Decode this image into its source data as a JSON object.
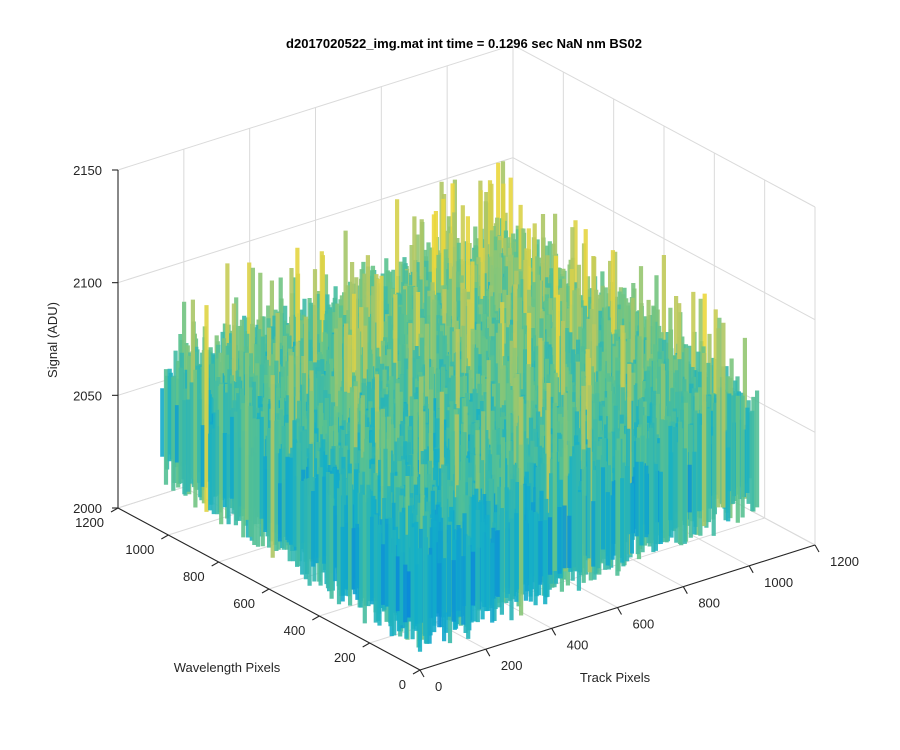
{
  "chart_data": {
    "type": "surface",
    "title": "d2017020522_img.mat int time = 0.1296 sec  NaN nm BS02",
    "xlabel": "Track Pixels",
    "ylabel": "Wavelength Pixels",
    "zlabel": "Signal (ADU)",
    "xlim": [
      0,
      1200
    ],
    "ylim": [
      0,
      1200
    ],
    "zlim": [
      2000,
      2150
    ],
    "x_ticks": [
      0,
      200,
      400,
      600,
      800,
      1000,
      1200
    ],
    "y_ticks": [
      0,
      200,
      400,
      600,
      800,
      1000,
      1200
    ],
    "z_ticks": [
      2000,
      2050,
      2100,
      2150
    ],
    "grid": true,
    "colormap": "parula",
    "surface": {
      "x_range": [
        0,
        1024
      ],
      "y_range": [
        0,
        1024
      ],
      "baseline_min": 2028,
      "baseline_max": 2060,
      "noise_min": 2005,
      "noise_max": 2118
    }
  }
}
